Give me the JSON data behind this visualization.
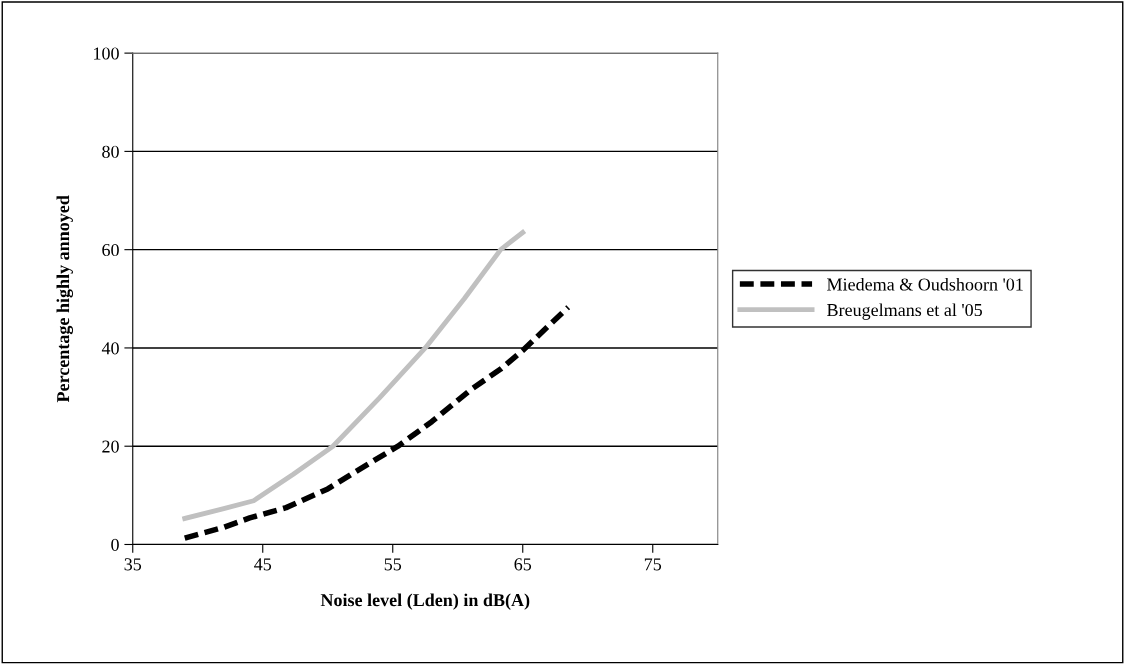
{
  "chart_data": {
    "type": "line",
    "xlabel": "Noise level (Lden) in dB(A)",
    "ylabel": "Percentage highly annoyed",
    "xlim": [
      35,
      80
    ],
    "xticks": [
      35,
      45,
      55,
      65,
      75
    ],
    "ylim": [
      0,
      100
    ],
    "yticks": [
      0,
      20,
      40,
      60,
      80,
      100
    ],
    "grid": "y",
    "legend": "right",
    "marker": "none",
    "series": [
      {
        "name": "Miedema & Oudshoorn '01",
        "color": "#000000",
        "line_style": "dashed",
        "x": [
          39.0,
          42,
          44,
          46.8,
          50,
          52.0,
          55.4,
          58,
          61,
          63.3,
          65,
          68.5
        ],
        "values": [
          1.3,
          3.5,
          5.4,
          7.5,
          11.3,
          14.6,
          20,
          25,
          31.5,
          35.7,
          39.5,
          48.3
        ]
      },
      {
        "name": "Breugelmans et al '05",
        "color": "#c0c0c0",
        "line_style": "solid",
        "x": [
          39.0,
          42,
          44.3,
          47.35,
          50.4,
          54.0,
          57.5,
          60.5,
          63.3,
          65
        ],
        "values": [
          5.3,
          7.3,
          8.9,
          14.3,
          20,
          29.9,
          40,
          50,
          60,
          63.5
        ]
      }
    ]
  }
}
